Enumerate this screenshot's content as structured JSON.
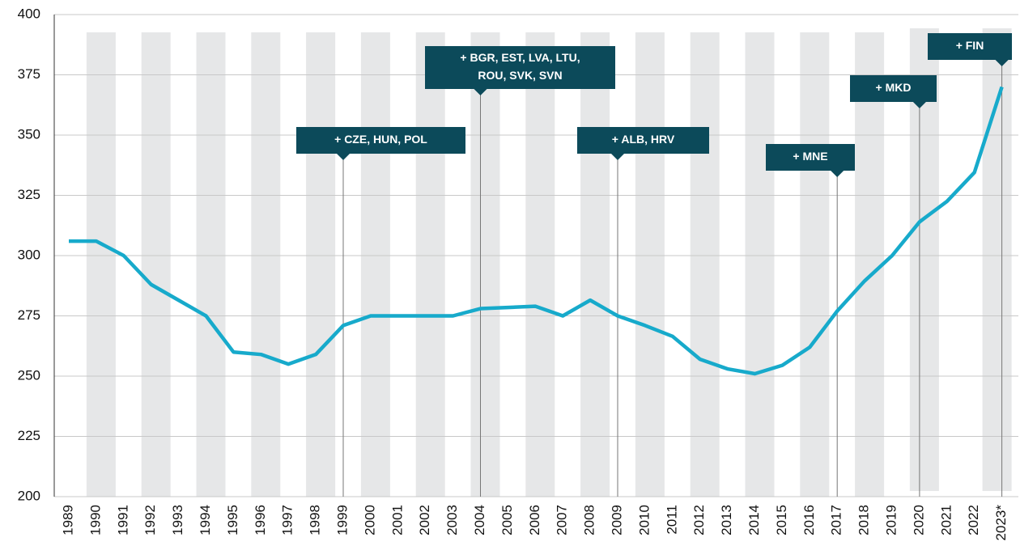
{
  "chart_data": {
    "type": "line",
    "categories": [
      "1989",
      "1990",
      "1991",
      "1992",
      "1993",
      "1994",
      "1995",
      "1996",
      "1997",
      "1998",
      "1999",
      "2000",
      "2001",
      "2002",
      "2003",
      "2004",
      "2005",
      "2006",
      "2007",
      "2008",
      "2009",
      "2010",
      "2011",
      "2012",
      "2013",
      "2014",
      "2015",
      "2016",
      "2017",
      "2018",
      "2019",
      "2020",
      "2021",
      "2022",
      "2023*"
    ],
    "series": [
      {
        "color": "#17aacb",
        "values": [
          306,
          306,
          300,
          288,
          281.5,
          275,
          260,
          259,
          255,
          259,
          271,
          275,
          275,
          275,
          275,
          278,
          278.5,
          279,
          275,
          281.5,
          275,
          271,
          266.5,
          257,
          253,
          251,
          254.5,
          262,
          277,
          289.5,
          300,
          314,
          322.5,
          334.5,
          370
        ]
      }
    ],
    "ylim": [
      200,
      400
    ],
    "yticks": [
      200,
      225,
      250,
      275,
      300,
      325,
      350,
      375,
      400
    ],
    "grid": true,
    "annotations": [
      {
        "x": "1999",
        "label": [
          "+ CZE, HUN, POL"
        ]
      },
      {
        "x": "2004",
        "label": [
          "+ BGR, EST, LVA, LTU,",
          "ROU, SVK, SVN"
        ]
      },
      {
        "x": "2009",
        "label": [
          "+ ALB, HRV"
        ]
      },
      {
        "x": "2017",
        "label": [
          "+ MNE"
        ]
      },
      {
        "x": "2020",
        "label": [
          "+ MKD"
        ]
      },
      {
        "x": "2023*",
        "label": [
          "+ FIN"
        ]
      }
    ]
  }
}
